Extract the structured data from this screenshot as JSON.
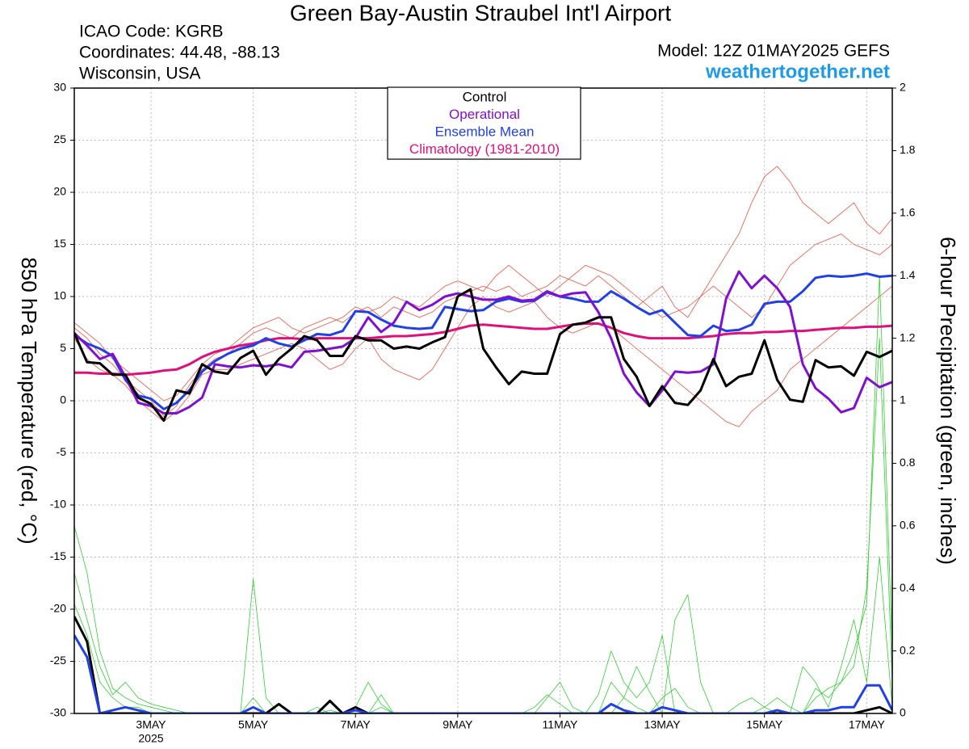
{
  "chart_data": {
    "type": "line",
    "title": "Green Bay-Austin Straubel Int'l Airport",
    "info": [
      "ICAO Code: KGRB",
      "Coordinates: 44.48, -88.13",
      "Wisconsin, USA"
    ],
    "model": "Model: 12Z 01MAY2025 GEFS",
    "site": "weathertogether.net",
    "ylabel": "850 hPa Temperature (red, °C)",
    "y2label": "6-hour Precipitation (green, inches)",
    "x": [
      0,
      6,
      12,
      18,
      24,
      30,
      36,
      42,
      48,
      54,
      60,
      66,
      72,
      78,
      84,
      90,
      96,
      102,
      108,
      114,
      120,
      126,
      132,
      138,
      144,
      150,
      156,
      162,
      168,
      174,
      180,
      186,
      192,
      198,
      204,
      210,
      216,
      222,
      228,
      234,
      240,
      246,
      252,
      258,
      264,
      270,
      276,
      282,
      288,
      294,
      300,
      306,
      312,
      318,
      324,
      330,
      336,
      342,
      348,
      354,
      360,
      366,
      372,
      378,
      384
    ],
    "xlim": [
      0,
      384
    ],
    "xticks": [
      {
        "value": 36,
        "label": "3MAY"
      },
      {
        "value": 84,
        "label": "5MAY"
      },
      {
        "value": 132,
        "label": "7MAY"
      },
      {
        "value": 180,
        "label": "9MAY"
      },
      {
        "value": 228,
        "label": "11MAY"
      },
      {
        "value": 276,
        "label": "13MAY"
      },
      {
        "value": 324,
        "label": "15MAY"
      },
      {
        "value": 372,
        "label": "17MAY"
      }
    ],
    "x_year": "2025",
    "ylim": [
      -30,
      30
    ],
    "yticks": [
      30,
      25,
      20,
      15,
      10,
      5,
      0,
      -5,
      -10,
      -15,
      -20,
      -25,
      -30
    ],
    "y2lim": [
      0,
      2
    ],
    "y2ticks": [
      2,
      1.8,
      1.6,
      1.4,
      1.2,
      1,
      0.8,
      0.6,
      0.4,
      0.2,
      0
    ],
    "grid": true,
    "members": [
      {
        "color": "#f05040",
        "values": [
          7,
          6,
          4.5,
          3.5,
          2,
          1,
          0,
          -1.5,
          -0.5,
          1.5,
          3,
          4,
          4.5,
          5.5,
          6.5,
          7,
          6.5,
          6,
          7,
          7.5,
          8,
          7.5,
          8.5,
          9,
          8,
          9,
          8.5,
          8,
          8.5,
          9.5,
          10,
          10.5,
          11,
          10.5,
          11,
          10,
          10.5,
          11,
          12,
          11.5,
          11,
          12,
          11,
          10,
          9,
          10,
          11,
          9,
          8,
          10,
          12,
          14,
          16,
          19,
          21.5,
          22.5,
          21,
          19,
          18,
          17,
          18,
          19,
          17,
          16,
          17.5
        ]
      },
      {
        "color": "#f05040",
        "values": [
          6,
          4,
          3,
          2.5,
          1.5,
          0,
          -1,
          -2,
          -1,
          0.5,
          2.5,
          3,
          3,
          3.5,
          4,
          4.5,
          5,
          5.5,
          5,
          4,
          3,
          3.5,
          5,
          6,
          4,
          3,
          2.5,
          2,
          3,
          5,
          7,
          9,
          10,
          9,
          8.5,
          9,
          9.5,
          8,
          7,
          6.5,
          7,
          7.5,
          7,
          6,
          5,
          4,
          3,
          2,
          1,
          0,
          -1,
          -2,
          -2.5,
          -1,
          0,
          1,
          3,
          4,
          5,
          6,
          7,
          8,
          9,
          10,
          11
        ]
      },
      {
        "color": "#f05040",
        "values": [
          7.5,
          6.5,
          5.5,
          4,
          3,
          2,
          1,
          0,
          0.5,
          2,
          3.5,
          4.5,
          5,
          6,
          7,
          7.5,
          8,
          7,
          6.5,
          7,
          7.5,
          8,
          9,
          8.5,
          9,
          10,
          9.5,
          9,
          10,
          11,
          11.5,
          11,
          10.5,
          12,
          13,
          12,
          11,
          10,
          11,
          12,
          13,
          12.5,
          12,
          11,
          10,
          9,
          8,
          8.5,
          9,
          10,
          11,
          10,
          9,
          8,
          9,
          11,
          13,
          14,
          15,
          15.5,
          16,
          15,
          14.5,
          14,
          15
        ]
      }
    ],
    "precip_members": [
      {
        "color": "#30d030",
        "axis": "y2",
        "values": [
          0.6,
          0.45,
          0.2,
          0.08,
          0.05,
          0.03,
          0.02,
          0.01,
          0,
          0,
          0,
          0,
          0,
          0,
          0.43,
          0.05,
          0,
          0,
          0,
          0,
          0,
          0,
          0.02,
          0.1,
          0.03,
          0,
          0,
          0,
          0,
          0,
          0,
          0,
          0,
          0,
          0,
          0,
          0,
          0,
          0,
          0,
          0,
          0,
          0,
          0.05,
          0.15,
          0.07,
          0,
          0.3,
          0.38,
          0.1,
          0,
          0,
          0,
          0,
          0.02,
          0.05,
          0.02,
          0,
          0.05,
          0.08,
          0.1,
          0.2,
          0.35,
          1.4,
          0.2
        ]
      },
      {
        "color": "#30d030",
        "axis": "y2",
        "values": [
          0.45,
          0.3,
          0.15,
          0.06,
          0.1,
          0.05,
          0.03,
          0.02,
          0.01,
          0,
          0,
          0,
          0,
          0,
          0,
          0,
          0,
          0,
          0,
          0.02,
          0,
          0,
          0,
          0,
          0.06,
          0,
          0,
          0,
          0,
          0,
          0,
          0,
          0,
          0,
          0,
          0,
          0.02,
          0.06,
          0.03,
          0,
          0,
          0.06,
          0.2,
          0.1,
          0.05,
          0.1,
          0.25,
          0,
          0,
          0,
          0,
          0,
          0,
          0,
          0,
          0,
          0,
          0,
          0.08,
          0.05,
          0.1,
          0.15,
          0.4,
          1.2,
          0.1
        ]
      },
      {
        "color": "#30d030",
        "axis": "y2",
        "values": [
          0.35,
          0.25,
          0.1,
          0.05,
          0.02,
          0.02,
          0,
          0,
          0,
          0,
          0,
          0,
          0,
          0,
          0.05,
          0,
          0,
          0,
          0,
          0,
          0.01,
          0,
          0,
          0,
          0.02,
          0,
          0,
          0,
          0,
          0,
          0,
          0,
          0,
          0,
          0,
          0,
          0,
          0.05,
          0.1,
          0.02,
          0,
          0,
          0.1,
          0.05,
          0.02,
          0,
          0.05,
          0.08,
          0.02,
          0,
          0,
          0,
          0.03,
          0.05,
          0.02,
          0,
          0,
          0.15,
          0.1,
          0.02,
          0.15,
          0.3,
          0.1,
          0.5,
          0.02
        ]
      }
    ],
    "precip_series": [
      {
        "color": "#000000",
        "axis": "y2",
        "values": [
          0.31,
          0.23,
          0,
          0,
          0,
          0,
          0,
          0,
          0,
          0,
          0,
          0,
          0,
          0,
          0,
          0,
          0.03,
          0,
          0,
          0,
          0.04,
          0,
          0.02,
          0,
          0,
          0,
          0,
          0,
          0,
          0,
          0,
          0,
          0,
          0,
          0,
          0,
          0,
          0,
          0,
          0,
          0,
          0,
          0,
          0,
          0,
          0,
          0,
          0,
          0,
          0,
          0,
          0,
          0,
          0,
          0,
          0,
          0,
          0,
          0,
          0,
          0,
          0,
          0.01,
          0.02,
          0
        ]
      },
      {
        "color": "#2040e8",
        "axis": "y2",
        "values": [
          0.25,
          0.18,
          0,
          0.01,
          0.02,
          0.01,
          0,
          0,
          0,
          0,
          0,
          0,
          0,
          0,
          0.02,
          0,
          0,
          0,
          0,
          0,
          0,
          0,
          0.01,
          0,
          0,
          0,
          0,
          0,
          0,
          0,
          0,
          0,
          0,
          0,
          0,
          0,
          0,
          0,
          0,
          0,
          0,
          0,
          0.03,
          0.01,
          0,
          0,
          0.02,
          0.01,
          0,
          0,
          0,
          0,
          0,
          0,
          0,
          0.01,
          0,
          0,
          0.01,
          0.01,
          0.02,
          0.02,
          0.09,
          0.09,
          0.01
        ]
      }
    ],
    "series": [
      {
        "name": "Climatology (1981-2010)",
        "color": "#e0107a",
        "values": [
          2.7,
          2.7,
          2.6,
          2.6,
          2.5,
          2.6,
          2.7,
          2.9,
          3.0,
          3.5,
          4.2,
          4.7,
          5.0,
          5.3,
          5.5,
          5.8,
          6.0,
          6.0,
          5.9,
          6.0,
          6.0,
          6.0,
          6.0,
          6.0,
          6.1,
          6.2,
          6.2,
          6.3,
          6.4,
          6.6,
          6.9,
          7.2,
          7.3,
          7.2,
          7.1,
          7.0,
          6.9,
          6.9,
          7.1,
          7.3,
          7.4,
          7.4,
          7.0,
          6.5,
          6.2,
          6.0,
          6.0,
          6.0,
          6.0,
          6.1,
          6.2,
          6.4,
          6.5,
          6.5,
          6.6,
          6.6,
          6.7,
          6.7,
          6.8,
          6.9,
          7.0,
          7.0,
          7.1,
          7.1,
          7.2
        ]
      },
      {
        "name": "Ensemble Mean",
        "color": "#2040e8",
        "values": [
          6.3,
          5.5,
          5.0,
          4.3,
          2.0,
          0.5,
          0.2,
          -0.8,
          -0.2,
          1.0,
          2.8,
          3.8,
          4.5,
          5.0,
          5.3,
          6.0,
          5.5,
          5.2,
          5.8,
          6.4,
          6.3,
          6.7,
          8.6,
          8.5,
          7.8,
          7.2,
          7.0,
          6.9,
          7.0,
          9.0,
          8.8,
          8.6,
          8.7,
          9.5,
          9.8,
          9.5,
          9.6,
          10.4,
          10.0,
          9.8,
          9.5,
          9.5,
          10.5,
          9.8,
          9.0,
          8.3,
          8.7,
          7.5,
          6.3,
          6.2,
          7.2,
          6.7,
          6.8,
          7.3,
          9.3,
          9.5,
          9.5,
          10.5,
          11.8,
          12.0,
          11.9,
          12.0,
          12.2,
          11.9,
          12.0
        ]
      },
      {
        "name": "Operational",
        "color": "#8010d0",
        "values": [
          6.5,
          5.3,
          4.0,
          4.5,
          2.3,
          -0.2,
          -0.5,
          -1.2,
          -1.2,
          -0.6,
          0.3,
          3.5,
          3.3,
          3.2,
          3.4,
          3.3,
          3.5,
          3.2,
          4.7,
          4.8,
          5.0,
          5.2,
          6.0,
          8.0,
          6.6,
          7.5,
          9.5,
          8.7,
          9.2,
          10.0,
          10.3,
          10.0,
          9.7,
          9.7,
          10.0,
          9.6,
          9.7,
          10.5,
          10.0,
          10.3,
          10.4,
          8.5,
          6.0,
          2.6,
          0.8,
          -0.5,
          1.0,
          2.8,
          2.7,
          2.8,
          3.5,
          9.8,
          12.4,
          10.8,
          12.0,
          10.8,
          9.0,
          3.5,
          1.2,
          0.2,
          -1.1,
          -0.7,
          2.2,
          1.3,
          1.8
        ]
      },
      {
        "name": "Control",
        "color": "#000000",
        "values": [
          6.5,
          3.7,
          3.6,
          2.5,
          2.5,
          0.3,
          -0.3,
          -1.9,
          1.0,
          0.7,
          3.5,
          2.8,
          2.6,
          4.1,
          4.8,
          2.5,
          4.0,
          5.0,
          6.2,
          5.8,
          4.3,
          4.3,
          6.2,
          5.8,
          5.8,
          5.0,
          5.2,
          5.0,
          5.6,
          6.1,
          10.0,
          10.7,
          5.0,
          3.2,
          1.6,
          2.8,
          2.6,
          2.6,
          6.4,
          7.3,
          7.5,
          8.0,
          8.0,
          4.0,
          2.3,
          -0.5,
          1.4,
          -0.2,
          -0.4,
          1.0,
          4.0,
          1.4,
          2.3,
          2.6,
          5.8,
          2.0,
          0.1,
          -0.1,
          3.9,
          3.2,
          3.3,
          2.4,
          4.7,
          4.2,
          4.8
        ]
      }
    ],
    "legend_order": [
      3,
      2,
      1,
      0
    ]
  }
}
